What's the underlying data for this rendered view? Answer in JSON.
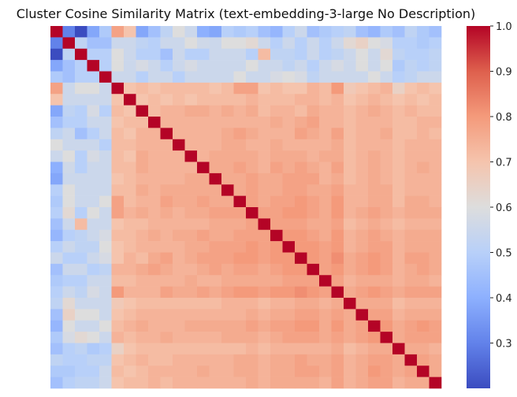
{
  "chart_data": {
    "type": "heatmap",
    "title": "Cluster Cosine Similarity Matrix (text-embedding-3-large No Description)",
    "xlabel": "",
    "ylabel": "",
    "colormap": "coolwarm",
    "colorbar": {
      "vmin": 0.2,
      "vmax": 1.0,
      "ticks": [
        0.3,
        0.4,
        0.5,
        0.6,
        0.7,
        0.8,
        0.9,
        "1.0"
      ],
      "position": "right"
    },
    "grid": false,
    "size": 32,
    "values": [
      [
        1.0,
        0.3,
        0.2,
        0.38,
        0.48,
        0.78,
        0.7,
        0.38,
        0.45,
        0.52,
        0.6,
        0.55,
        0.4,
        0.38,
        0.5,
        0.48,
        0.5,
        0.45,
        0.42,
        0.5,
        0.55,
        0.45,
        0.48,
        0.5,
        0.52,
        0.45,
        0.42,
        0.48,
        0.45,
        0.52,
        0.48,
        0.45
      ],
      [
        0.3,
        1.0,
        0.52,
        0.45,
        0.45,
        0.55,
        0.55,
        0.52,
        0.5,
        0.55,
        0.55,
        0.6,
        0.56,
        0.55,
        0.6,
        0.6,
        0.62,
        0.55,
        0.5,
        0.55,
        0.5,
        0.55,
        0.5,
        0.55,
        0.62,
        0.65,
        0.6,
        0.58,
        0.5,
        0.5,
        0.48,
        0.5
      ],
      [
        0.2,
        0.52,
        1.0,
        0.5,
        0.5,
        0.6,
        0.55,
        0.5,
        0.5,
        0.45,
        0.55,
        0.5,
        0.5,
        0.55,
        0.55,
        0.55,
        0.5,
        0.72,
        0.52,
        0.52,
        0.5,
        0.55,
        0.5,
        0.52,
        0.55,
        0.6,
        0.55,
        0.62,
        0.52,
        0.5,
        0.5,
        0.52
      ],
      [
        0.38,
        0.45,
        0.5,
        1.0,
        0.5,
        0.6,
        0.55,
        0.58,
        0.55,
        0.5,
        0.55,
        0.58,
        0.55,
        0.55,
        0.55,
        0.55,
        0.6,
        0.55,
        0.55,
        0.52,
        0.55,
        0.5,
        0.55,
        0.58,
        0.55,
        0.6,
        0.55,
        0.6,
        0.48,
        0.52,
        0.5,
        0.52
      ],
      [
        0.48,
        0.45,
        0.5,
        0.5,
        1.0,
        0.55,
        0.55,
        0.5,
        0.55,
        0.55,
        0.5,
        0.55,
        0.55,
        0.55,
        0.55,
        0.6,
        0.55,
        0.55,
        0.58,
        0.6,
        0.58,
        0.52,
        0.55,
        0.55,
        0.55,
        0.55,
        0.6,
        0.55,
        0.5,
        0.52,
        0.55,
        0.55
      ],
      [
        0.78,
        0.55,
        0.6,
        0.6,
        0.55,
        1.0,
        0.7,
        0.72,
        0.7,
        0.72,
        0.72,
        0.72,
        0.72,
        0.7,
        0.72,
        0.78,
        0.78,
        0.7,
        0.72,
        0.7,
        0.7,
        0.74,
        0.72,
        0.8,
        0.68,
        0.7,
        0.72,
        0.74,
        0.65,
        0.7,
        0.72,
        0.7
      ],
      [
        0.7,
        0.55,
        0.55,
        0.55,
        0.55,
        0.7,
        1.0,
        0.7,
        0.72,
        0.7,
        0.72,
        0.7,
        0.72,
        0.72,
        0.72,
        0.72,
        0.74,
        0.72,
        0.72,
        0.72,
        0.74,
        0.74,
        0.72,
        0.74,
        0.7,
        0.72,
        0.74,
        0.72,
        0.7,
        0.72,
        0.7,
        0.72
      ],
      [
        0.38,
        0.52,
        0.5,
        0.58,
        0.5,
        0.72,
        0.7,
        1.0,
        0.72,
        0.74,
        0.74,
        0.76,
        0.76,
        0.74,
        0.76,
        0.74,
        0.76,
        0.72,
        0.74,
        0.74,
        0.72,
        0.76,
        0.74,
        0.74,
        0.72,
        0.74,
        0.76,
        0.74,
        0.72,
        0.74,
        0.72,
        0.72
      ],
      [
        0.45,
        0.5,
        0.5,
        0.55,
        0.55,
        0.7,
        0.72,
        0.72,
        1.0,
        0.74,
        0.74,
        0.74,
        0.74,
        0.74,
        0.74,
        0.74,
        0.74,
        0.74,
        0.76,
        0.74,
        0.76,
        0.78,
        0.74,
        0.74,
        0.72,
        0.74,
        0.74,
        0.74,
        0.72,
        0.72,
        0.74,
        0.74
      ],
      [
        0.52,
        0.55,
        0.45,
        0.5,
        0.55,
        0.72,
        0.7,
        0.74,
        0.74,
        1.0,
        0.74,
        0.74,
        0.74,
        0.74,
        0.76,
        0.78,
        0.76,
        0.74,
        0.74,
        0.74,
        0.78,
        0.76,
        0.74,
        0.78,
        0.72,
        0.74,
        0.74,
        0.76,
        0.72,
        0.72,
        0.74,
        0.72
      ],
      [
        0.6,
        0.55,
        0.55,
        0.55,
        0.5,
        0.72,
        0.72,
        0.74,
        0.74,
        0.74,
        1.0,
        0.74,
        0.74,
        0.74,
        0.76,
        0.76,
        0.74,
        0.74,
        0.76,
        0.74,
        0.74,
        0.74,
        0.74,
        0.76,
        0.72,
        0.74,
        0.74,
        0.74,
        0.72,
        0.74,
        0.74,
        0.74
      ],
      [
        0.55,
        0.6,
        0.5,
        0.58,
        0.55,
        0.72,
        0.7,
        0.76,
        0.74,
        0.74,
        0.74,
        1.0,
        0.74,
        0.76,
        0.76,
        0.76,
        0.76,
        0.74,
        0.76,
        0.76,
        0.76,
        0.74,
        0.76,
        0.76,
        0.72,
        0.74,
        0.76,
        0.74,
        0.72,
        0.74,
        0.74,
        0.74
      ],
      [
        0.4,
        0.56,
        0.5,
        0.55,
        0.55,
        0.72,
        0.72,
        0.76,
        0.74,
        0.74,
        0.74,
        0.74,
        1.0,
        0.76,
        0.76,
        0.78,
        0.76,
        0.74,
        0.78,
        0.76,
        0.78,
        0.76,
        0.74,
        0.78,
        0.72,
        0.74,
        0.76,
        0.74,
        0.72,
        0.74,
        0.76,
        0.74
      ],
      [
        0.38,
        0.55,
        0.55,
        0.55,
        0.55,
        0.7,
        0.72,
        0.74,
        0.74,
        0.74,
        0.74,
        0.76,
        0.76,
        1.0,
        0.76,
        0.76,
        0.78,
        0.76,
        0.76,
        0.78,
        0.78,
        0.78,
        0.74,
        0.76,
        0.72,
        0.74,
        0.76,
        0.74,
        0.72,
        0.74,
        0.74,
        0.74
      ],
      [
        0.5,
        0.6,
        0.55,
        0.55,
        0.55,
        0.72,
        0.72,
        0.76,
        0.74,
        0.76,
        0.76,
        0.76,
        0.76,
        0.76,
        1.0,
        0.76,
        0.78,
        0.76,
        0.76,
        0.78,
        0.78,
        0.76,
        0.76,
        0.78,
        0.74,
        0.74,
        0.76,
        0.76,
        0.72,
        0.74,
        0.74,
        0.74
      ],
      [
        0.48,
        0.6,
        0.55,
        0.55,
        0.6,
        0.78,
        0.72,
        0.74,
        0.74,
        0.78,
        0.76,
        0.76,
        0.78,
        0.76,
        0.76,
        1.0,
        0.78,
        0.76,
        0.78,
        0.78,
        0.8,
        0.78,
        0.76,
        0.8,
        0.74,
        0.74,
        0.76,
        0.76,
        0.72,
        0.76,
        0.76,
        0.74
      ],
      [
        0.5,
        0.62,
        0.5,
        0.6,
        0.55,
        0.78,
        0.74,
        0.76,
        0.74,
        0.76,
        0.74,
        0.76,
        0.76,
        0.78,
        0.78,
        0.78,
        1.0,
        0.78,
        0.78,
        0.8,
        0.8,
        0.78,
        0.76,
        0.8,
        0.74,
        0.76,
        0.78,
        0.76,
        0.74,
        0.76,
        0.76,
        0.76
      ],
      [
        0.45,
        0.55,
        0.72,
        0.55,
        0.55,
        0.7,
        0.72,
        0.72,
        0.74,
        0.74,
        0.74,
        0.74,
        0.74,
        0.76,
        0.76,
        0.76,
        0.78,
        1.0,
        0.78,
        0.78,
        0.78,
        0.76,
        0.76,
        0.78,
        0.72,
        0.74,
        0.76,
        0.74,
        0.72,
        0.74,
        0.74,
        0.74
      ],
      [
        0.42,
        0.5,
        0.52,
        0.55,
        0.58,
        0.72,
        0.72,
        0.74,
        0.76,
        0.74,
        0.76,
        0.76,
        0.78,
        0.76,
        0.76,
        0.78,
        0.78,
        0.78,
        1.0,
        0.8,
        0.8,
        0.78,
        0.76,
        0.8,
        0.74,
        0.76,
        0.78,
        0.76,
        0.74,
        0.76,
        0.76,
        0.76
      ],
      [
        0.5,
        0.55,
        0.52,
        0.52,
        0.6,
        0.7,
        0.72,
        0.74,
        0.74,
        0.74,
        0.74,
        0.76,
        0.76,
        0.78,
        0.78,
        0.78,
        0.8,
        0.78,
        0.8,
        1.0,
        0.8,
        0.8,
        0.78,
        0.8,
        0.74,
        0.76,
        0.78,
        0.78,
        0.74,
        0.76,
        0.76,
        0.76
      ],
      [
        0.55,
        0.5,
        0.5,
        0.55,
        0.58,
        0.7,
        0.74,
        0.72,
        0.76,
        0.78,
        0.74,
        0.76,
        0.78,
        0.78,
        0.78,
        0.8,
        0.8,
        0.78,
        0.8,
        0.8,
        1.0,
        0.8,
        0.78,
        0.82,
        0.76,
        0.78,
        0.8,
        0.78,
        0.74,
        0.78,
        0.78,
        0.76
      ],
      [
        0.45,
        0.55,
        0.55,
        0.5,
        0.52,
        0.74,
        0.74,
        0.76,
        0.78,
        0.76,
        0.74,
        0.74,
        0.76,
        0.78,
        0.76,
        0.78,
        0.78,
        0.76,
        0.78,
        0.8,
        0.8,
        1.0,
        0.78,
        0.8,
        0.76,
        0.78,
        0.8,
        0.78,
        0.74,
        0.76,
        0.78,
        0.76
      ],
      [
        0.48,
        0.5,
        0.5,
        0.55,
        0.55,
        0.72,
        0.72,
        0.74,
        0.74,
        0.74,
        0.74,
        0.76,
        0.74,
        0.74,
        0.76,
        0.76,
        0.76,
        0.76,
        0.76,
        0.78,
        0.78,
        0.78,
        1.0,
        0.78,
        0.74,
        0.76,
        0.76,
        0.76,
        0.74,
        0.76,
        0.76,
        0.74
      ],
      [
        0.5,
        0.55,
        0.52,
        0.58,
        0.55,
        0.8,
        0.74,
        0.74,
        0.74,
        0.78,
        0.76,
        0.76,
        0.78,
        0.76,
        0.78,
        0.8,
        0.8,
        0.78,
        0.8,
        0.8,
        0.82,
        0.8,
        0.78,
        1.0,
        0.76,
        0.78,
        0.8,
        0.78,
        0.76,
        0.78,
        0.78,
        0.78
      ],
      [
        0.52,
        0.62,
        0.55,
        0.55,
        0.55,
        0.68,
        0.7,
        0.72,
        0.72,
        0.72,
        0.72,
        0.72,
        0.72,
        0.72,
        0.74,
        0.74,
        0.74,
        0.72,
        0.74,
        0.74,
        0.76,
        0.76,
        0.74,
        0.76,
        1.0,
        0.76,
        0.76,
        0.76,
        0.72,
        0.74,
        0.74,
        0.74
      ],
      [
        0.45,
        0.65,
        0.6,
        0.6,
        0.55,
        0.7,
        0.72,
        0.74,
        0.74,
        0.74,
        0.74,
        0.74,
        0.74,
        0.74,
        0.74,
        0.74,
        0.76,
        0.74,
        0.76,
        0.76,
        0.78,
        0.78,
        0.76,
        0.78,
        0.76,
        1.0,
        0.78,
        0.78,
        0.74,
        0.76,
        0.76,
        0.76
      ],
      [
        0.42,
        0.6,
        0.55,
        0.55,
        0.6,
        0.72,
        0.74,
        0.76,
        0.74,
        0.74,
        0.74,
        0.76,
        0.76,
        0.76,
        0.76,
        0.76,
        0.78,
        0.76,
        0.78,
        0.78,
        0.8,
        0.8,
        0.76,
        0.8,
        0.76,
        0.78,
        1.0,
        0.8,
        0.76,
        0.78,
        0.8,
        0.78
      ],
      [
        0.48,
        0.58,
        0.62,
        0.6,
        0.55,
        0.74,
        0.72,
        0.74,
        0.74,
        0.76,
        0.74,
        0.74,
        0.74,
        0.74,
        0.76,
        0.76,
        0.76,
        0.74,
        0.76,
        0.78,
        0.78,
        0.78,
        0.76,
        0.78,
        0.76,
        0.78,
        0.8,
        1.0,
        0.76,
        0.78,
        0.78,
        0.78
      ],
      [
        0.45,
        0.5,
        0.52,
        0.48,
        0.5,
        0.65,
        0.7,
        0.72,
        0.72,
        0.72,
        0.72,
        0.72,
        0.72,
        0.72,
        0.72,
        0.72,
        0.74,
        0.72,
        0.74,
        0.74,
        0.74,
        0.74,
        0.74,
        0.76,
        0.72,
        0.74,
        0.76,
        0.76,
        1.0,
        0.76,
        0.76,
        0.74
      ],
      [
        0.52,
        0.5,
        0.5,
        0.52,
        0.52,
        0.7,
        0.72,
        0.74,
        0.72,
        0.72,
        0.74,
        0.74,
        0.74,
        0.74,
        0.74,
        0.76,
        0.76,
        0.74,
        0.76,
        0.76,
        0.78,
        0.76,
        0.76,
        0.78,
        0.74,
        0.76,
        0.78,
        0.78,
        0.76,
        1.0,
        0.78,
        0.76
      ],
      [
        0.48,
        0.48,
        0.5,
        0.5,
        0.55,
        0.72,
        0.7,
        0.72,
        0.74,
        0.74,
        0.74,
        0.74,
        0.76,
        0.74,
        0.74,
        0.76,
        0.76,
        0.74,
        0.76,
        0.76,
        0.78,
        0.78,
        0.76,
        0.78,
        0.74,
        0.76,
        0.8,
        0.78,
        0.76,
        0.78,
        1.0,
        0.76
      ],
      [
        0.45,
        0.5,
        0.52,
        0.52,
        0.55,
        0.7,
        0.72,
        0.72,
        0.74,
        0.72,
        0.74,
        0.74,
        0.74,
        0.74,
        0.74,
        0.74,
        0.76,
        0.74,
        0.76,
        0.76,
        0.76,
        0.76,
        0.74,
        0.78,
        0.74,
        0.76,
        0.78,
        0.78,
        0.74,
        0.76,
        0.76,
        1.0
      ]
    ]
  }
}
